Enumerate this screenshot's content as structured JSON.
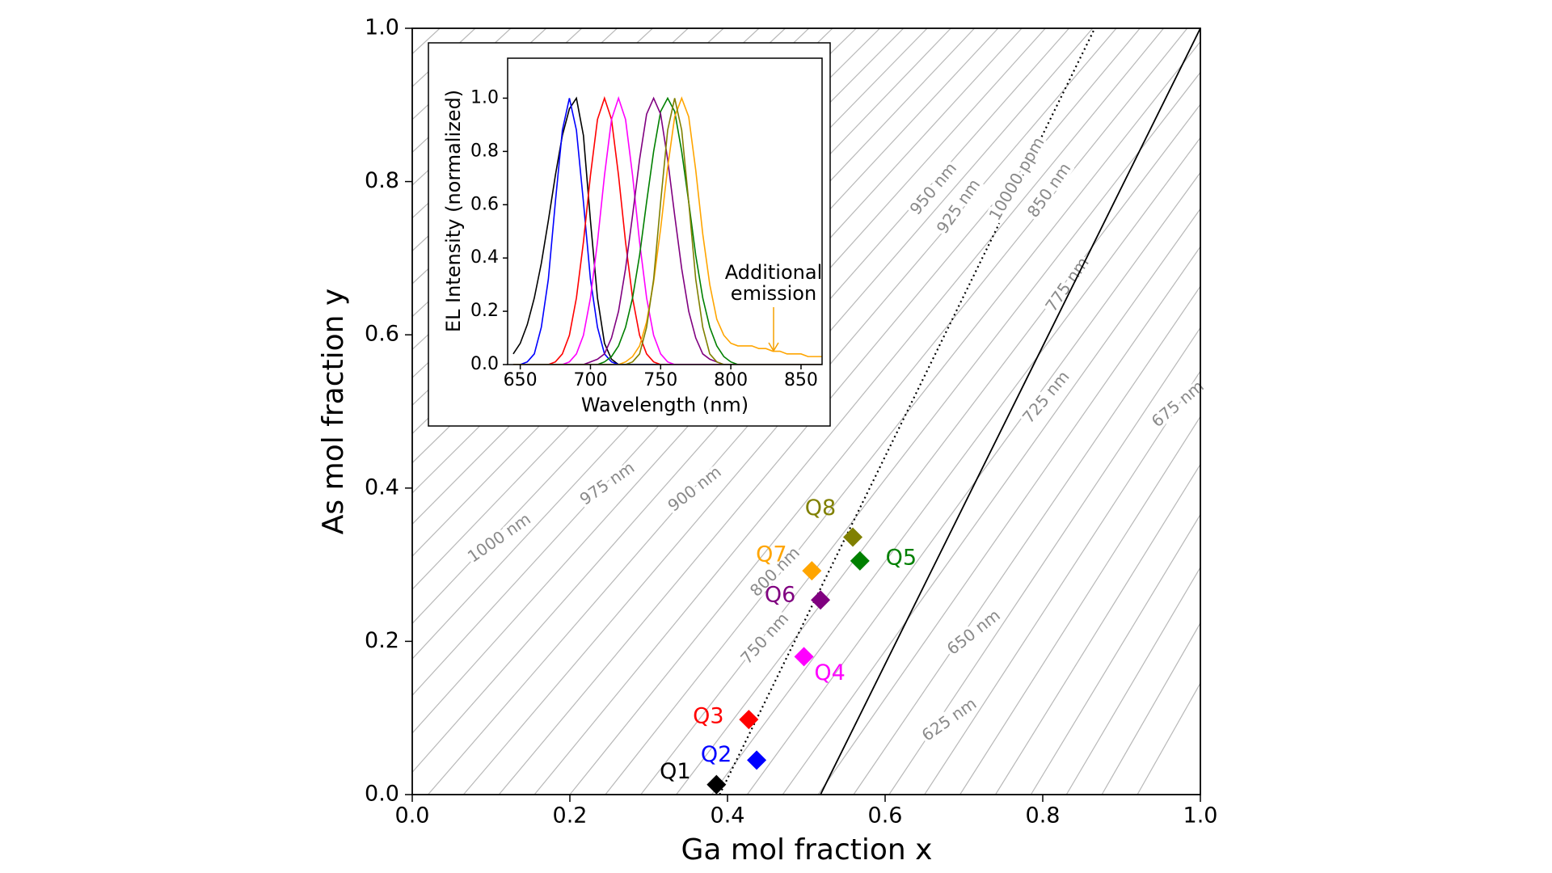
{
  "chart_data": [
    {
      "type": "scatter",
      "xlabel": "Ga mol fraction x",
      "ylabel": "As mol fraction y",
      "xlim": [
        0,
        1
      ],
      "ylim": [
        0,
        1
      ],
      "xticks": [
        {
          "value": 0,
          "label": "0.0"
        },
        0.2,
        0.4,
        0.6,
        0.8,
        {
          "value": 1,
          "label": "1.0"
        }
      ],
      "yticks": [
        {
          "value": 0,
          "label": "0.0"
        },
        0.2,
        0.4,
        0.6,
        0.8,
        {
          "value": 1,
          "label": "1.0"
        }
      ],
      "marker": "diamond",
      "series": [
        {
          "name": "Q1",
          "color": "#000000",
          "x": [
            0.386
          ],
          "y": [
            0.013
          ]
        },
        {
          "name": "Q2",
          "color": "#0000ff",
          "x": [
            0.437
          ],
          "y": [
            0.045
          ]
        },
        {
          "name": "Q3",
          "color": "#ff0000",
          "x": [
            0.427
          ],
          "y": [
            0.098
          ]
        },
        {
          "name": "Q4",
          "color": "#ff00ff",
          "x": [
            0.497
          ],
          "y": [
            0.18
          ]
        },
        {
          "name": "Q5",
          "color": "#008000",
          "x": [
            0.568
          ],
          "y": [
            0.305
          ]
        },
        {
          "name": "Q6",
          "color": "#800080",
          "x": [
            0.518
          ],
          "y": [
            0.254
          ]
        },
        {
          "name": "Q7",
          "color": "#ffa500",
          "x": [
            0.507
          ],
          "y": [
            0.292
          ]
        },
        {
          "name": "Q8",
          "color": "#808000",
          "x": [
            0.559
          ],
          "y": [
            0.336
          ]
        }
      ],
      "lines": [
        {
          "label": "10000 ppm",
          "color": "#000000",
          "style": "dotted",
          "x": [
            0.39,
            0.866
          ],
          "y": [
            0,
            1
          ]
        },
        {
          "color": "#000000",
          "style": "solid",
          "x": [
            0.518,
            1.0
          ],
          "y": [
            0,
            1
          ]
        }
      ],
      "contour_color": "#b8b8b8",
      "contour_labels": [
        "1000 nm",
        "975 nm",
        "900 nm",
        "800 nm",
        "750 nm",
        "950 nm",
        "925 nm",
        "850 nm",
        "775 nm",
        "725 nm",
        "675 nm",
        "650 nm",
        "625 nm"
      ]
    },
    {
      "type": "line",
      "xlabel": "Wavelength (nm)",
      "ylabel": "EL Intensity (normalized)",
      "xlim": [
        641,
        865
      ],
      "ylim": [
        0,
        1.15
      ],
      "xticks": [
        650,
        700,
        750,
        800,
        850
      ],
      "yticks": [
        {
          "value": 0,
          "label": "0.0"
        },
        0.2,
        0.4,
        0.6,
        0.8,
        {
          "value": 1,
          "label": "1.0"
        }
      ],
      "x": [
        645,
        650,
        655,
        660,
        665,
        670,
        675,
        680,
        685,
        690,
        695,
        700,
        705,
        710,
        715,
        720,
        725,
        730,
        735,
        740,
        745,
        750,
        755,
        760,
        765,
        770,
        775,
        780,
        785,
        790,
        795,
        800,
        805,
        810,
        815,
        820,
        825,
        830,
        835,
        840,
        845,
        850,
        855,
        860,
        865
      ],
      "series": [
        {
          "color": "#000000",
          "values": [
            0.04,
            0.08,
            0.15,
            0.25,
            0.38,
            0.54,
            0.71,
            0.86,
            0.96,
            1,
            0.86,
            0.54,
            0.25,
            0.08,
            0.02,
            0,
            0,
            0,
            0,
            0,
            0,
            0,
            0,
            0,
            0,
            0,
            0,
            0,
            0,
            0,
            0,
            0,
            0,
            0,
            0,
            0,
            0,
            0,
            0,
            0,
            0,
            0,
            0,
            0,
            0
          ]
        },
        {
          "color": "#0000ff",
          "values": [
            0,
            0,
            0.01,
            0.04,
            0.14,
            0.32,
            0.61,
            0.88,
            1,
            0.88,
            0.61,
            0.32,
            0.14,
            0.04,
            0.01,
            0,
            0,
            0,
            0,
            0,
            0,
            0,
            0,
            0,
            0,
            0,
            0,
            0,
            0,
            0,
            0,
            0,
            0,
            0,
            0,
            0,
            0,
            0,
            0,
            0,
            0,
            0,
            0,
            0,
            0
          ]
        },
        {
          "color": "#ff0000",
          "values": [
            0,
            0,
            0,
            0,
            0,
            0,
            0.01,
            0.04,
            0.11,
            0.25,
            0.46,
            0.71,
            0.92,
            1,
            0.92,
            0.71,
            0.46,
            0.25,
            0.11,
            0.04,
            0.01,
            0,
            0,
            0,
            0,
            0,
            0,
            0,
            0,
            0,
            0,
            0,
            0,
            0,
            0,
            0,
            0,
            0,
            0,
            0,
            0,
            0,
            0,
            0,
            0
          ]
        },
        {
          "color": "#ff00ff",
          "values": [
            0,
            0,
            0,
            0,
            0,
            0,
            0,
            0,
            0.01,
            0.04,
            0.11,
            0.25,
            0.46,
            0.71,
            0.92,
            1,
            0.92,
            0.71,
            0.46,
            0.25,
            0.11,
            0.04,
            0.01,
            0,
            0,
            0,
            0,
            0,
            0,
            0,
            0,
            0,
            0,
            0,
            0,
            0,
            0,
            0,
            0,
            0,
            0,
            0,
            0,
            0,
            0
          ]
        },
        {
          "color": "#008000",
          "values": [
            0,
            0,
            0,
            0,
            0,
            0,
            0,
            0,
            0,
            0,
            0,
            0,
            0,
            0.01,
            0.03,
            0.07,
            0.14,
            0.25,
            0.41,
            0.61,
            0.8,
            0.95,
            1,
            0.95,
            0.8,
            0.61,
            0.41,
            0.25,
            0.14,
            0.07,
            0.03,
            0.01,
            0,
            0,
            0,
            0,
            0,
            0,
            0,
            0,
            0,
            0,
            0,
            0,
            0
          ]
        },
        {
          "color": "#800080",
          "values": [
            0,
            0,
            0,
            0,
            0,
            0,
            0,
            0,
            0,
            0,
            0,
            0.01,
            0.02,
            0.04,
            0.1,
            0.2,
            0.36,
            0.56,
            0.77,
            0.94,
            1,
            0.94,
            0.77,
            0.56,
            0.36,
            0.2,
            0.1,
            0.04,
            0.02,
            0.01,
            0,
            0,
            0,
            0,
            0,
            0,
            0,
            0,
            0,
            0,
            0,
            0,
            0,
            0,
            0
          ]
        },
        {
          "color": "#ffa500",
          "values": [
            0,
            0,
            0,
            0,
            0,
            0,
            0,
            0,
            0,
            0,
            0,
            0,
            0,
            0,
            0,
            0,
            0.01,
            0.03,
            0.07,
            0.16,
            0.31,
            0.51,
            0.74,
            0.93,
            1,
            0.93,
            0.73,
            0.49,
            0.3,
            0.17,
            0.11,
            0.08,
            0.07,
            0.07,
            0.07,
            0.06,
            0.06,
            0.05,
            0.05,
            0.04,
            0.04,
            0.04,
            0.03,
            0.03,
            0.03
          ]
        },
        {
          "color": "#808000",
          "values": [
            0,
            0,
            0,
            0,
            0,
            0,
            0,
            0,
            0,
            0,
            0,
            0,
            0,
            0,
            0,
            0,
            0,
            0.01,
            0.04,
            0.14,
            0.32,
            0.61,
            0.88,
            1,
            0.88,
            0.61,
            0.32,
            0.14,
            0.04,
            0.01,
            0,
            0,
            0,
            0,
            0,
            0,
            0,
            0,
            0,
            0,
            0,
            0,
            0,
            0,
            0
          ]
        }
      ],
      "annotation": {
        "text": [
          "Additional",
          "emission"
        ],
        "color": "#f5a000"
      }
    }
  ]
}
